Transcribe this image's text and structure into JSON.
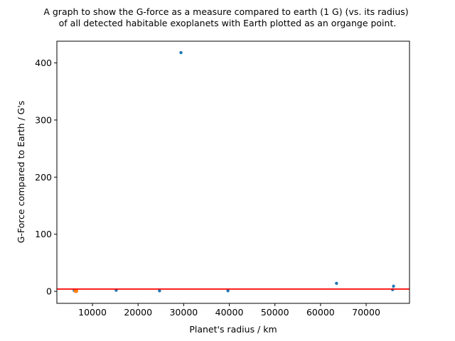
{
  "chart_data": {
    "type": "scatter",
    "title_lines": [
      "A graph to show the G-force as a measure compared to earth (1 G) (vs. its radius)",
      "of all detected habitable exoplanets with Earth plotted as an organge point."
    ],
    "xlabel": "Planet's radius / km",
    "ylabel": "G-Force compared to Earth / G's",
    "xlim": [
      2200,
      79500
    ],
    "ylim": [
      -21,
      438
    ],
    "x_ticks": [
      10000,
      20000,
      30000,
      40000,
      50000,
      60000,
      70000
    ],
    "x_tick_labels": [
      "10000",
      "20000",
      "30000",
      "40000",
      "50000",
      "60000",
      "70000"
    ],
    "y_ticks": [
      0,
      100,
      200,
      300,
      400
    ],
    "y_tick_labels": [
      "0",
      "100",
      "200",
      "300",
      "400"
    ],
    "grid": false,
    "series": [
      {
        "color": "#1f77b4",
        "points": [
          {
            "x": 6000,
            "y": 1.5
          },
          {
            "x": 15200,
            "y": 2
          },
          {
            "x": 24700,
            "y": 1
          },
          {
            "x": 29400,
            "y": 418
          },
          {
            "x": 39700,
            "y": 1
          },
          {
            "x": 63500,
            "y": 14
          },
          {
            "x": 75800,
            "y": 3
          },
          {
            "x": 76000,
            "y": 9
          }
        ]
      },
      {
        "color": "#ff7f0e",
        "points": [
          {
            "x": 6371,
            "y": 1
          }
        ]
      }
    ],
    "reference_line": {
      "y": 4,
      "color": "#ff0000"
    }
  }
}
